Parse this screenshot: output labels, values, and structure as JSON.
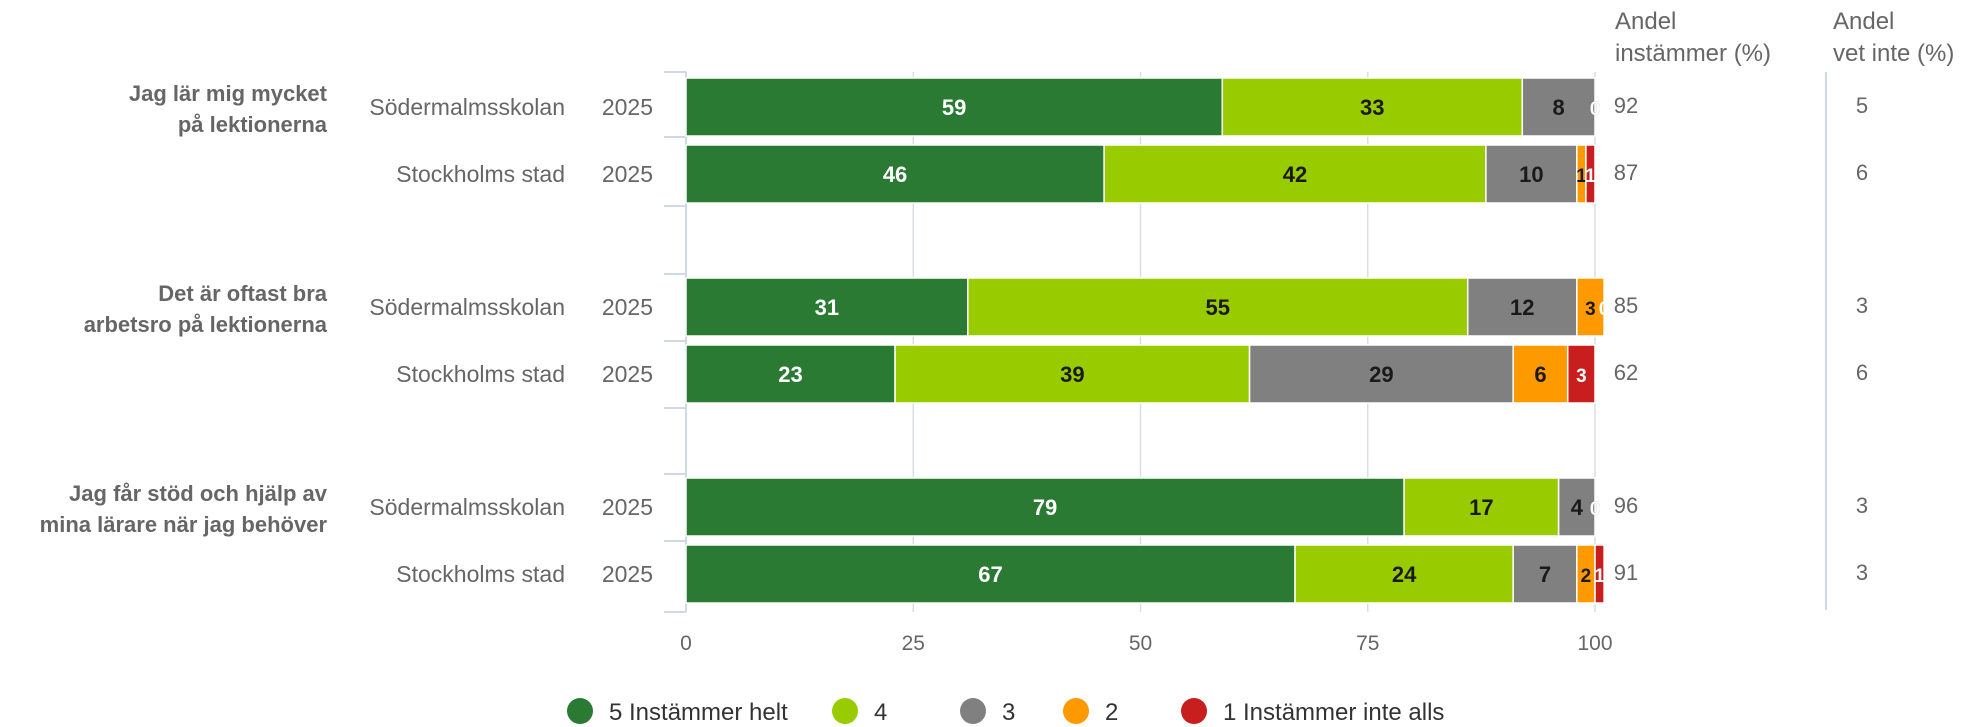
{
  "chart_data": {
    "type": "bar",
    "stacked": true,
    "orientation": "horizontal",
    "xlim": [
      0,
      100
    ],
    "xticks": [
      "0",
      "25",
      "50",
      "75",
      "100"
    ],
    "grid": true,
    "legend_position": "bottom",
    "colors": {
      "5 Instämmer helt": "#2a7a33",
      "4": "#99cc00",
      "3": "#808080",
      "2": "#ff9900",
      "1 Instämmer inte alls": "#c81e1e"
    },
    "legend": [
      "5 Instämmer helt",
      "4",
      "3",
      "2",
      "1 Instämmer inte alls"
    ],
    "column_headers": {
      "andel_instammer": [
        "Andel",
        "instämmer (%)"
      ],
      "andel_vet_inte": [
        "Andel",
        "vet inte (%)"
      ]
    },
    "groups": [
      {
        "question": [
          "Jag lär mig mycket",
          "på lektionerna"
        ],
        "rows": [
          {
            "label": "Södermalmsskolan",
            "year": "2025",
            "values": [
              59,
              33,
              8,
              0,
              0
            ],
            "andel_instammer": "92",
            "andel_vet_inte": "5"
          },
          {
            "label": "Stockholms stad",
            "year": "2025",
            "values": [
              46,
              42,
              10,
              1,
              1
            ],
            "andel_instammer": "87",
            "andel_vet_inte": "6"
          }
        ]
      },
      {
        "question": [
          "Det är oftast bra",
          "arbetsro på lektionerna"
        ],
        "rows": [
          {
            "label": "Södermalmsskolan",
            "year": "2025",
            "values": [
              31,
              55,
              12,
              3,
              0
            ],
            "andel_instammer": "85",
            "andel_vet_inte": "3"
          },
          {
            "label": "Stockholms stad",
            "year": "2025",
            "values": [
              23,
              39,
              29,
              6,
              3
            ],
            "andel_instammer": "62",
            "andel_vet_inte": "6"
          }
        ]
      },
      {
        "question": [
          "Jag får stöd och hjälp av",
          "mina lärare när jag behöver"
        ],
        "rows": [
          {
            "label": "Södermalmsskolan",
            "year": "2025",
            "values": [
              79,
              17,
              4,
              0,
              0
            ],
            "andel_instammer": "96",
            "andel_vet_inte": "3"
          },
          {
            "label": "Stockholms stad",
            "year": "2025",
            "values": [
              67,
              24,
              7,
              2,
              1
            ],
            "andel_instammer": "91",
            "andel_vet_inte": "3"
          }
        ]
      }
    ]
  }
}
